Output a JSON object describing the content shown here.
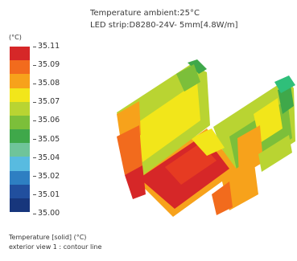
{
  "header": {
    "line1": "Temperature ambient:25°C",
    "line2": "LED strip:D8280-24V- 5mm[4.8W/m]"
  },
  "legend": {
    "unit": "(°C)",
    "labels": [
      "35.11",
      "35.09",
      "35.08",
      "35.07",
      "35.06",
      "35.05",
      "35.04",
      "35.02",
      "35.01",
      "35.00"
    ],
    "colors": [
      "#d62728",
      "#f26b1d",
      "#f7a21b",
      "#f2e61a",
      "#b9d432",
      "#7cbf3a",
      "#3fa84a",
      "#6fc49a",
      "#58bbe0",
      "#2e7fc2",
      "#214f9e",
      "#17367c"
    ]
  },
  "footer": {
    "line1": "Temperature [solid] (°C)",
    "line2": "exterior view 1 : contour line"
  }
}
